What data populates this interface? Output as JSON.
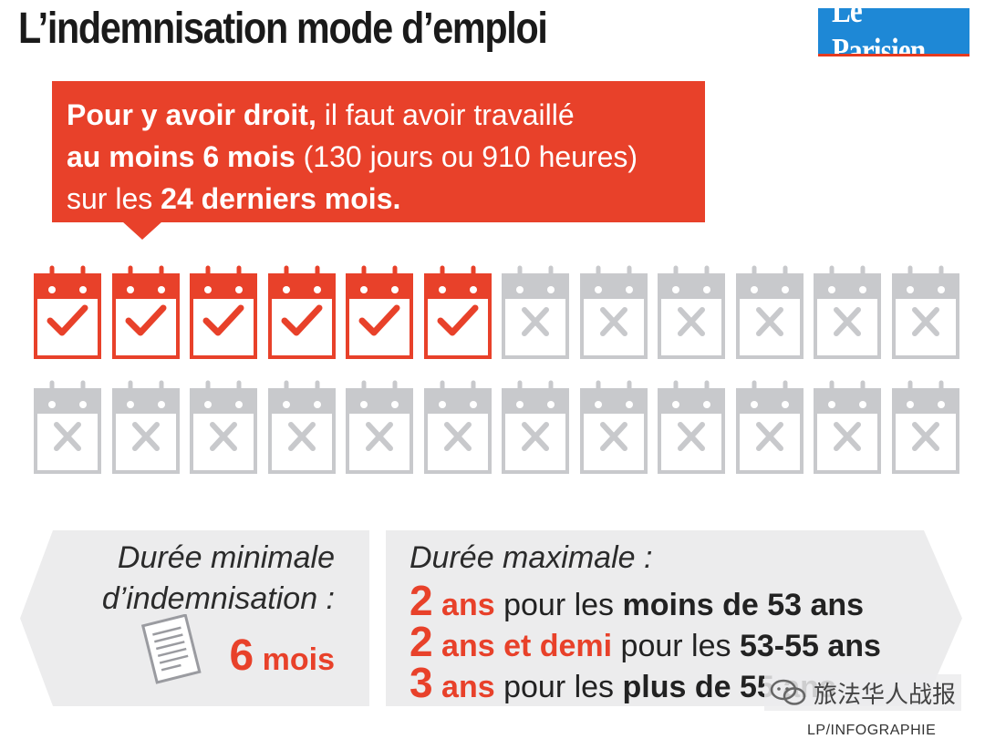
{
  "header": {
    "title": "L’indemnisation mode d’emploi",
    "logo_text": "Le Parisien"
  },
  "callout": {
    "line1_bold": "Pour y avoir droit,",
    "line1_rest": " il faut avoir travaillé",
    "line2_bold": "au moins 6 mois",
    "line2_rest": " (130 jours ou 910 heures)",
    "line3_rest": "sur les ",
    "line3_bold": "24 derniers mois."
  },
  "calendar": {
    "total_months": 24,
    "worked_months": 6,
    "worked_color": "#e8412a",
    "other_color": "#c8c9cc",
    "worked_icon": "checkmark-icon",
    "other_icon": "cross-icon"
  },
  "minimum": {
    "label_line1": "Durée minimale",
    "label_line2": "d’indemnisation :",
    "icon": "document-icon",
    "value_num": "6",
    "value_unit": " mois"
  },
  "maximum": {
    "title": "Durée maximale :",
    "rows": [
      {
        "num": "2",
        "unit": " ans",
        "mid": " pour les ",
        "group": "moins de 53 ans"
      },
      {
        "num": "2",
        "unit": " ans et demi",
        "mid": " pour les ",
        "group": "53-55 ans"
      },
      {
        "num": "3",
        "unit": " ans",
        "mid": " pour les ",
        "group": "plus de 55 ans"
      }
    ]
  },
  "watermark": {
    "text": "旅法华人战报",
    "icon": "wechat-icon"
  },
  "credit": "LP/INFOGRAPHIE",
  "colors": {
    "accent": "#e8412a",
    "panel": "#ececed",
    "logo": "#1e88d6"
  }
}
